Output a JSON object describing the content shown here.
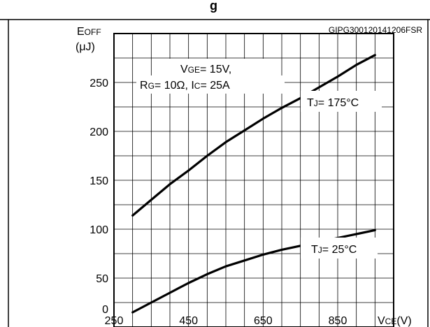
{
  "header_fragment": "g",
  "code": "GIPG300120141206FSR",
  "ylabel": {
    "main": "E",
    "sub": "OFF",
    "unit": "(μJ)"
  },
  "xlabel": {
    "main": "V",
    "sub": "CE",
    "unit": "(V)"
  },
  "conditions": {
    "line1": {
      "v": "V",
      "sub": "GE",
      "rest": "= 15V,"
    },
    "line2": {
      "r": "R",
      "rsub": "G",
      "rmid": "= 10Ω, I",
      "csub": "C",
      "rest": "= 25A"
    }
  },
  "chart_data": {
    "type": "line",
    "xlim": [
      250,
      1000
    ],
    "ylim": [
      0,
      300
    ],
    "x_ticks": [
      250,
      450,
      650,
      850
    ],
    "y_ticks": [
      0,
      50,
      100,
      150,
      200,
      250
    ],
    "grid": true,
    "series": [
      {
        "label": {
          "t": "T",
          "sub": "J",
          "rest": "= 175°C"
        },
        "x": [
          300,
          350,
          400,
          450,
          500,
          550,
          600,
          650,
          700,
          750,
          800,
          850,
          900,
          950
        ],
        "y": [
          114,
          130,
          146,
          160,
          175,
          189,
          201,
          213,
          224,
          234,
          245,
          256,
          268,
          278
        ]
      },
      {
        "label": {
          "t": "T",
          "sub": "J",
          "rest": "= 25°C"
        },
        "x": [
          300,
          350,
          400,
          450,
          500,
          550,
          600,
          650,
          700,
          750,
          800,
          850,
          900,
          950
        ],
        "y": [
          15,
          25,
          35,
          45,
          54,
          62,
          68,
          74,
          79,
          83,
          87,
          91,
          95,
          99
        ]
      }
    ]
  }
}
